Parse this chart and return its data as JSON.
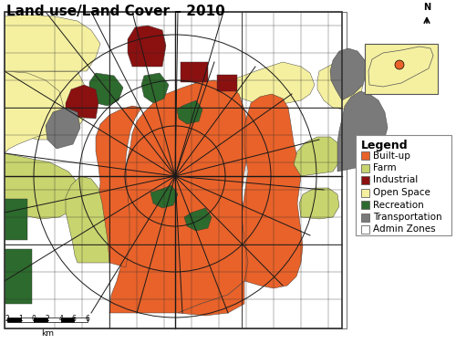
{
  "title": "Land use/Land Cover – 2010",
  "legend_items": [
    {
      "label": "Built-up",
      "color": "#E8622A",
      "edgecolor": "#999999"
    },
    {
      "label": "Farm",
      "color": "#C8D46E",
      "edgecolor": "#999999"
    },
    {
      "label": "Industrial",
      "color": "#8B1010",
      "edgecolor": "#999999"
    },
    {
      "label": "Open Space",
      "color": "#F5F0A0",
      "edgecolor": "#999999"
    },
    {
      "label": "Recreation",
      "color": "#2D6A2D",
      "edgecolor": "#999999"
    },
    {
      "label": "Transportation",
      "color": "#7A7A7A",
      "edgecolor": "#999999"
    },
    {
      "label": "Admin Zones",
      "color": "#FFFFFF",
      "edgecolor": "#999999"
    }
  ],
  "bg_color": "#FFFFFF",
  "title_fontsize": 11,
  "legend_fontsize": 7.5,
  "legend_title_fontsize": 9,
  "scale_ticks": [
    "2",
    "1",
    "0",
    "2",
    "4",
    "6"
  ],
  "scale_label": "km"
}
